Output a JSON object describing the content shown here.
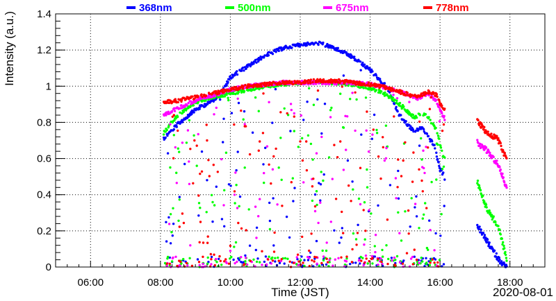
{
  "chart_data": {
    "type": "scatter",
    "title": "",
    "xlabel": "Time (JST)",
    "ylabel": "Intensity (a.u.)",
    "date_label": "2020-08-01",
    "xlim": [
      "05:00",
      "19:00"
    ],
    "ylim": [
      0,
      1.4
    ],
    "xticks": [
      "06:00",
      "08:00",
      "10:00",
      "12:00",
      "14:00",
      "16:00",
      "18:00"
    ],
    "yticks": [
      "0",
      "0.2",
      "0.4",
      "0.6",
      "0.8",
      "1",
      "1.2",
      "1.4"
    ],
    "grid": true,
    "legend_position": "top",
    "series": [
      {
        "name": "368nm",
        "color": "#0000ff",
        "envelope": [
          [
            "08:05",
            0.72
          ],
          [
            "08:30",
            0.8
          ],
          [
            "09:00",
            0.88
          ],
          [
            "09:30",
            0.93
          ],
          [
            "09:50",
            1.0
          ],
          [
            "10:00",
            1.06
          ],
          [
            "10:30",
            1.12
          ],
          [
            "11:00",
            1.18
          ],
          [
            "11:30",
            1.22
          ],
          [
            "12:00",
            1.24
          ],
          [
            "12:30",
            1.25
          ],
          [
            "13:00",
            1.22
          ],
          [
            "13:30",
            1.17
          ],
          [
            "14:00",
            1.1
          ],
          [
            "14:30",
            1.0
          ],
          [
            "14:50",
            0.85
          ],
          [
            "15:15",
            0.76
          ],
          [
            "15:30",
            0.78
          ],
          [
            "15:50",
            0.68
          ],
          [
            "16:00",
            0.55
          ],
          [
            "17:05",
            0.24
          ],
          [
            "17:20",
            0.16
          ],
          [
            "17:40",
            0.06
          ],
          [
            "17:55",
            0.01
          ]
        ]
      },
      {
        "name": "500nm",
        "color": "#00ff00",
        "envelope": [
          [
            "08:05",
            0.75
          ],
          [
            "08:30",
            0.85
          ],
          [
            "09:00",
            0.92
          ],
          [
            "09:30",
            0.95
          ],
          [
            "10:00",
            0.97
          ],
          [
            "10:30",
            0.99
          ],
          [
            "11:00",
            1.01
          ],
          [
            "11:30",
            1.02
          ],
          [
            "12:00",
            1.03
          ],
          [
            "12:30",
            1.03
          ],
          [
            "13:00",
            1.03
          ],
          [
            "13:30",
            1.02
          ],
          [
            "14:00",
            1.0
          ],
          [
            "14:30",
            0.96
          ],
          [
            "14:55",
            0.9
          ],
          [
            "15:15",
            0.84
          ],
          [
            "15:35",
            0.86
          ],
          [
            "15:55",
            0.76
          ],
          [
            "16:05",
            0.62
          ],
          [
            "17:05",
            0.48
          ],
          [
            "17:20",
            0.34
          ],
          [
            "17:40",
            0.24
          ],
          [
            "17:55",
            0.05
          ]
        ]
      },
      {
        "name": "675nm",
        "color": "#ff00ff",
        "envelope": [
          [
            "08:05",
            0.85
          ],
          [
            "08:30",
            0.89
          ],
          [
            "09:00",
            0.93
          ],
          [
            "09:30",
            0.96
          ],
          [
            "10:00",
            0.99
          ],
          [
            "10:30",
            1.01
          ],
          [
            "11:00",
            1.02
          ],
          [
            "11:30",
            1.03
          ],
          [
            "12:00",
            1.03
          ],
          [
            "12:30",
            1.03
          ],
          [
            "13:00",
            1.03
          ],
          [
            "13:30",
            1.03
          ],
          [
            "14:00",
            1.02
          ],
          [
            "14:30",
            1.0
          ],
          [
            "15:00",
            0.97
          ],
          [
            "15:20",
            0.94
          ],
          [
            "15:40",
            0.97
          ],
          [
            "15:55",
            0.92
          ],
          [
            "16:05",
            0.84
          ],
          [
            "17:05",
            0.7
          ],
          [
            "17:20",
            0.66
          ],
          [
            "17:40",
            0.58
          ],
          [
            "17:55",
            0.45
          ]
        ]
      },
      {
        "name": "778nm",
        "color": "#ff0000",
        "envelope": [
          [
            "08:05",
            0.92
          ],
          [
            "08:30",
            0.93
          ],
          [
            "09:00",
            0.95
          ],
          [
            "09:30",
            0.97
          ],
          [
            "10:00",
            0.99
          ],
          [
            "10:30",
            1.01
          ],
          [
            "11:00",
            1.02
          ],
          [
            "11:30",
            1.03
          ],
          [
            "12:00",
            1.03
          ],
          [
            "12:30",
            1.04
          ],
          [
            "13:00",
            1.04
          ],
          [
            "13:30",
            1.03
          ],
          [
            "14:00",
            1.02
          ],
          [
            "14:30",
            1.0
          ],
          [
            "15:00",
            0.97
          ],
          [
            "15:20",
            0.95
          ],
          [
            "15:40",
            0.98
          ],
          [
            "15:55",
            0.96
          ],
          [
            "16:05",
            0.88
          ],
          [
            "17:05",
            0.82
          ],
          [
            "17:20",
            0.76
          ],
          [
            "17:40",
            0.72
          ],
          [
            "17:55",
            0.6
          ]
        ]
      }
    ]
  }
}
